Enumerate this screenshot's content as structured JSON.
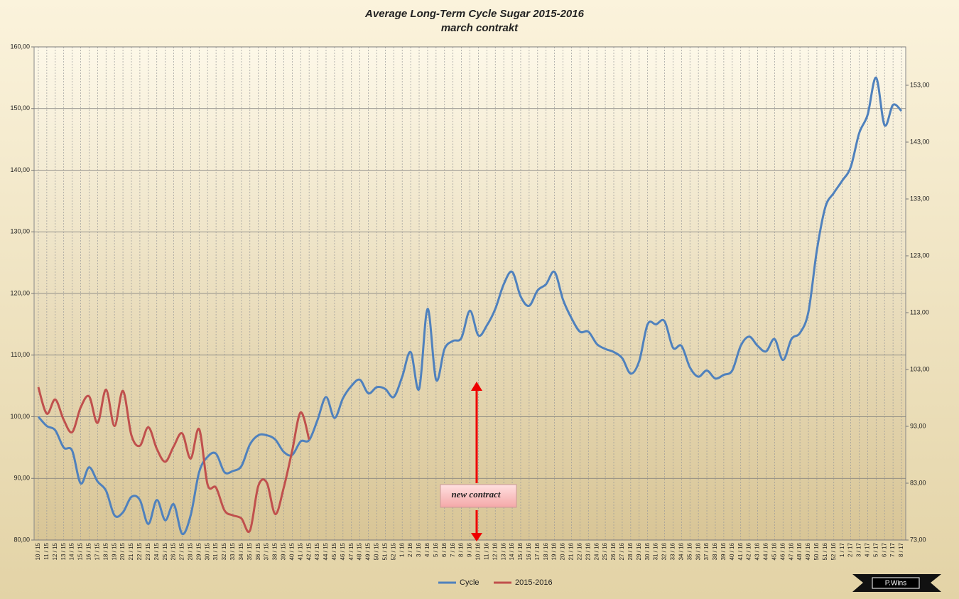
{
  "chart_data": {
    "type": "line",
    "title": "Average Long-Term Cycle Sugar 2015-2016",
    "subtitle": "march contrakt",
    "annotation": "new contract",
    "watermark": "P.Wins",
    "categories": [
      "10 / 15",
      "11 / 15",
      "12 / 15",
      "13 / 15",
      "14 / 15",
      "15 / 15",
      "16 / 15",
      "17 / 15",
      "18 / 15",
      "19 / 15",
      "20 / 15",
      "21 / 15",
      "22 / 15",
      "23 / 15",
      "24 / 15",
      "25 / 15",
      "26 / 15",
      "27 / 15",
      "28 / 15",
      "29 / 15",
      "30 / 15",
      "31 / 15",
      "32 / 15",
      "33 / 15",
      "34 / 15",
      "35 / 15",
      "36 / 15",
      "37 / 15",
      "38 / 15",
      "39 / 15",
      "40 / 15",
      "41 / 15",
      "42 / 15",
      "43 / 15",
      "44 / 15",
      "45 / 15",
      "46 / 15",
      "47 / 15",
      "48 / 15",
      "49 / 15",
      "50 / 15",
      "51 / 15",
      "52 / 15",
      "1 / 16",
      "2 / 16",
      "3 / 16",
      "4 / 16",
      "5 / 16",
      "6 / 16",
      "7 / 16",
      "8 / 16",
      "9 / 16",
      "10 / 16",
      "11 / 16",
      "12 / 16",
      "13 / 16",
      "14 / 16",
      "15 / 16",
      "16 / 16",
      "17 / 16",
      "18 / 16",
      "19 / 16",
      "20 / 16",
      "21 / 16",
      "22 / 16",
      "23 / 16",
      "24 / 16",
      "25 / 16",
      "26 / 16",
      "27 / 16",
      "28 / 16",
      "29 / 16",
      "30 / 16",
      "31 / 16",
      "32 / 16",
      "33 / 16",
      "34 / 16",
      "35 / 16",
      "36 / 16",
      "37 / 16",
      "38 / 16",
      "39 / 16",
      "40 / 16",
      "41 / 16",
      "42 / 16",
      "43 / 16",
      "44 / 16",
      "45 / 16",
      "46 / 16",
      "47 / 16",
      "48 / 16",
      "49 / 16",
      "50 / 16",
      "51 / 16",
      "52 / 16",
      "1 / 17",
      "2 / 17",
      "3 / 17",
      "4 / 17",
      "5 / 17",
      "6 / 17",
      "7 / 17",
      "8 / 17"
    ],
    "series": [
      {
        "name": "Cycle",
        "color": "#4f81bd",
        "values": [
          100,
          98.5,
          97.8,
          95,
          94.5,
          89.2,
          91.8,
          89.5,
          88,
          84,
          84.5,
          87,
          86.5,
          82.6,
          86.5,
          83.2,
          85.8,
          81,
          84,
          91,
          93.5,
          94,
          91,
          91.2,
          92,
          95.5,
          97,
          97,
          96.3,
          94.3,
          93.8,
          96,
          96.2,
          99.5,
          103.2,
          99.8,
          103,
          105,
          106,
          103.8,
          104.8,
          104.5,
          103.2,
          106.5,
          110.5,
          104.5,
          117.5,
          106,
          111,
          112.3,
          112.8,
          117.2,
          113.2,
          114.8,
          117.5,
          121.5,
          123.5,
          119.5,
          118,
          120.5,
          121.5,
          123.5,
          119,
          116,
          113.8,
          113.8,
          111.8,
          111,
          110.5,
          109.5,
          107,
          109,
          115,
          115,
          115.5,
          111.2,
          111.5,
          108,
          106.5,
          107.5,
          106.2,
          106.8,
          107.5,
          111.5,
          113,
          111.5,
          110.6,
          112.6,
          109.2,
          112.6,
          113.6,
          117,
          127,
          134,
          136.3,
          138.3,
          140.5,
          146,
          149,
          155,
          147.3,
          150.6,
          149.6
        ]
      },
      {
        "name": "2015-2016",
        "color": "#c0504d",
        "values": [
          104.8,
          100.5,
          102.8,
          99.5,
          97.5,
          101.5,
          103.3,
          99,
          104.4,
          98.5,
          104.2,
          97,
          95.3,
          98.3,
          94.8,
          92.7,
          95.2,
          97.3,
          93.2,
          98,
          89,
          88.5,
          84.8,
          84,
          83.5,
          81.5,
          88.8,
          89.3,
          84.2,
          88.5,
          94.5,
          100.7,
          96.3,
          null,
          null,
          null,
          null,
          null,
          null,
          null,
          null,
          null,
          null,
          null,
          null,
          null,
          null,
          null,
          null,
          null,
          null,
          null,
          null,
          null,
          null,
          null,
          null,
          null,
          null,
          null,
          null,
          null,
          null,
          null,
          null,
          null,
          null,
          null,
          null,
          null,
          null,
          null,
          null,
          null,
          null,
          null,
          null,
          null,
          null,
          null,
          null,
          null,
          null,
          null,
          null,
          null,
          null,
          null,
          null,
          null,
          null,
          null,
          null,
          null,
          null,
          null,
          null,
          null,
          null,
          null,
          null,
          null,
          null
        ]
      }
    ],
    "ylim": [
      80,
      160
    ],
    "yticks": [
      {
        "value": 80,
        "label": "80,00"
      },
      {
        "value": 90,
        "label": "90,00"
      },
      {
        "value": 100,
        "label": "100,00"
      },
      {
        "value": 110,
        "label": "110,00"
      },
      {
        "value": 120,
        "label": "120,00"
      },
      {
        "value": 130,
        "label": "130,00"
      },
      {
        "value": 140,
        "label": "140,00"
      },
      {
        "value": 150,
        "label": "150,00"
      },
      {
        "value": 160,
        "label": "160,00"
      }
    ],
    "y2lim": [
      73,
      159.75
    ],
    "y2ticks": [
      {
        "value": 73,
        "label": "73,00"
      },
      {
        "value": 83,
        "label": "83,00"
      },
      {
        "value": 93,
        "label": "93,00"
      },
      {
        "value": 103,
        "label": "103,00"
      },
      {
        "value": 113,
        "label": "113,00"
      },
      {
        "value": 123,
        "label": "123,00"
      },
      {
        "value": 133,
        "label": "133,00"
      },
      {
        "value": 143,
        "label": "143,00"
      },
      {
        "value": 153,
        "label": "153,00"
      }
    ],
    "grid": true,
    "legend": "bottom"
  }
}
